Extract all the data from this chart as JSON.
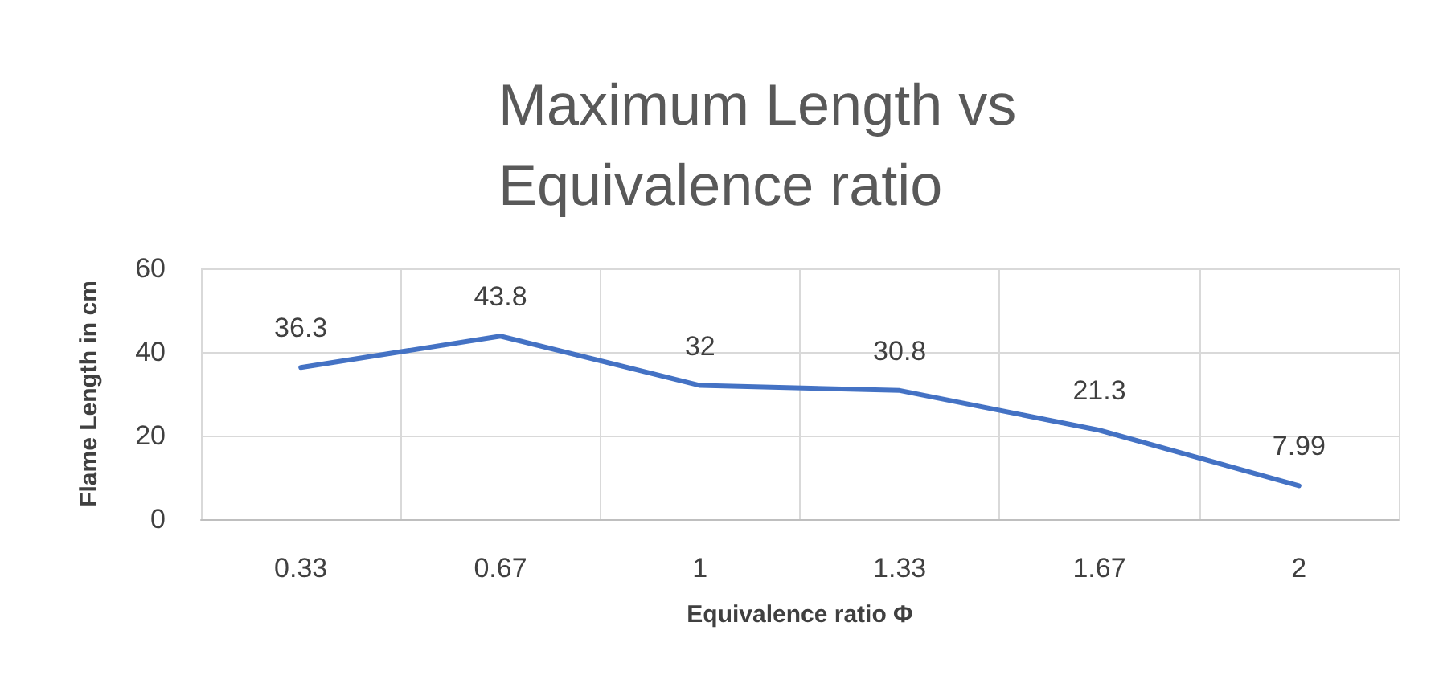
{
  "chart_data": {
    "type": "line",
    "title": "Maximum Length vs Equivalence ratio",
    "xlabel": "Equivalence ratio Φ",
    "ylabel": "Flame Length in cm",
    "categories": [
      "0.33",
      "0.67",
      "1",
      "1.33",
      "1.67",
      "2"
    ],
    "series": [
      {
        "color": "#4472c4",
        "values": [
          36.3,
          43.8,
          32,
          30.8,
          21.3,
          7.99
        ]
      }
    ],
    "ylim": [
      0,
      60
    ],
    "yticks": [
      0,
      20,
      40,
      60
    ],
    "grid": true,
    "data_labels": true,
    "marker": "none",
    "line_style": "solid"
  }
}
